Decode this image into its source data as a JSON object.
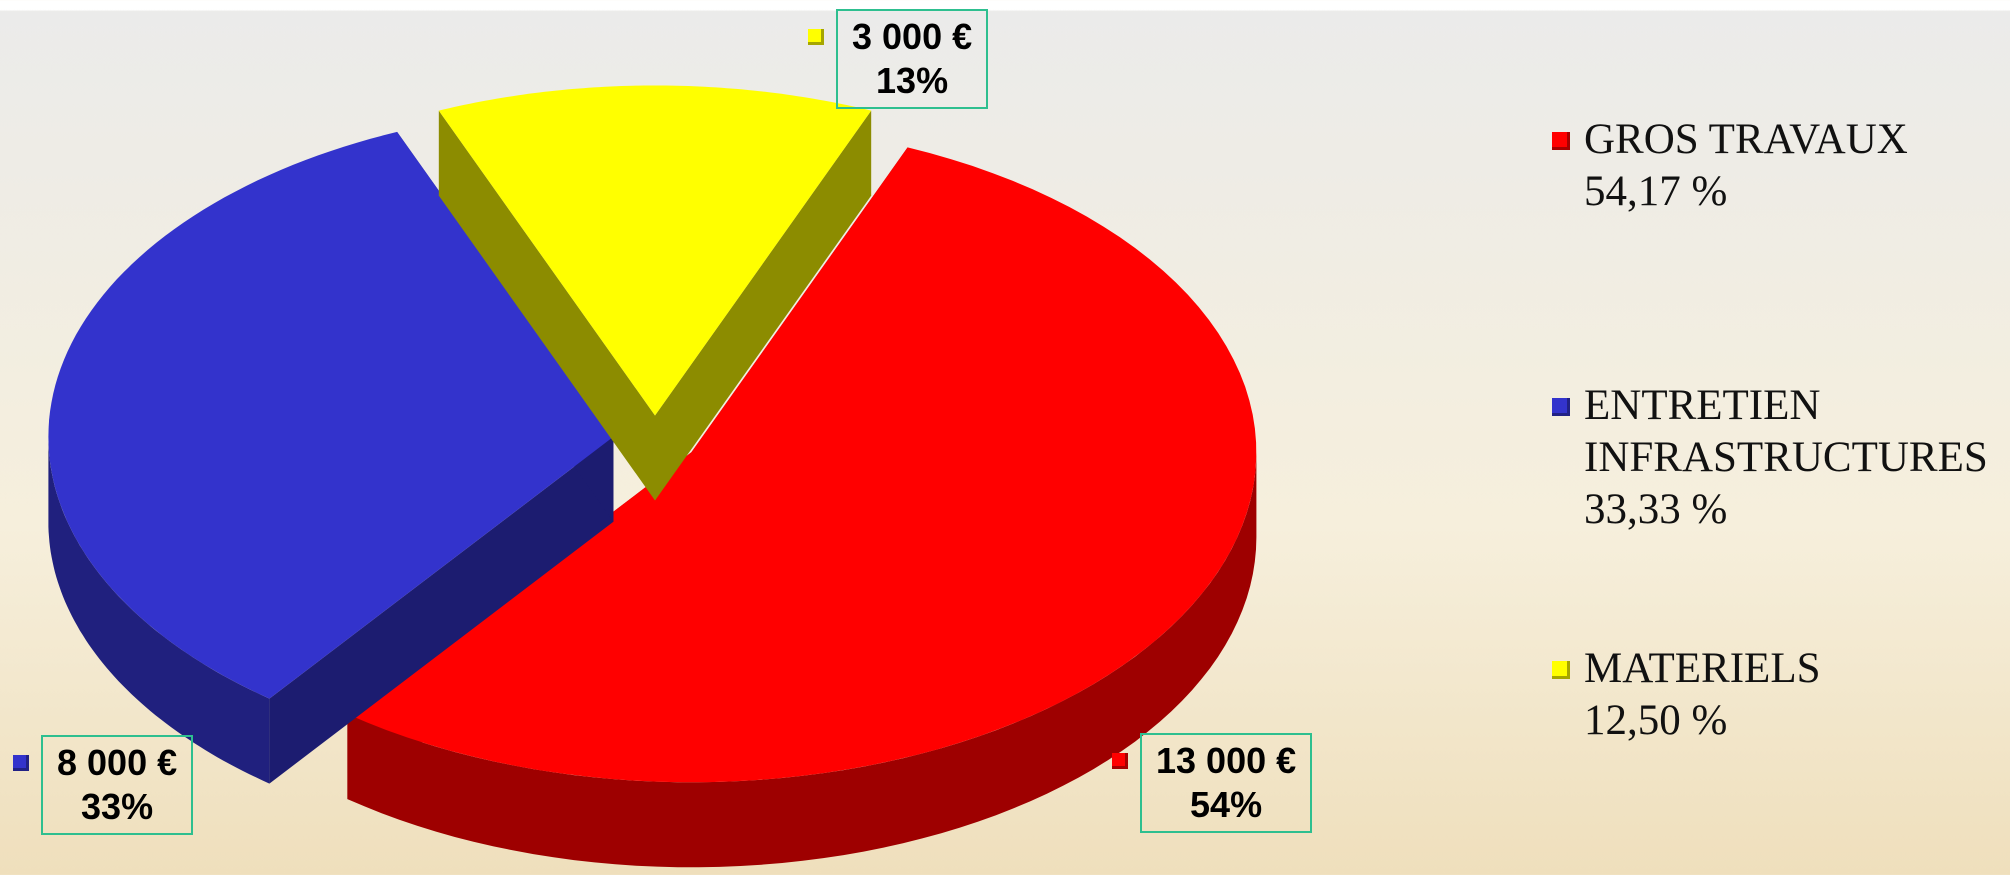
{
  "chart_data": {
    "type": "pie",
    "categories": [
      "GROS TRAVAUX",
      "ENTRETIEN INFRASTRUCTURES",
      "MATERIELS"
    ],
    "values": [
      13000,
      8000,
      3000
    ],
    "value_labels": [
      "13 000 €",
      "8 000 €",
      "3 000 €"
    ],
    "rounded_percent_labels": [
      "54%",
      "33%",
      "13%"
    ],
    "percent_labels": [
      "54,17 %",
      "33,33 %",
      "12,50 %"
    ],
    "colors": [
      "#ff0000",
      "#3333cc",
      "#ffff00"
    ],
    "legend": "right"
  }
}
